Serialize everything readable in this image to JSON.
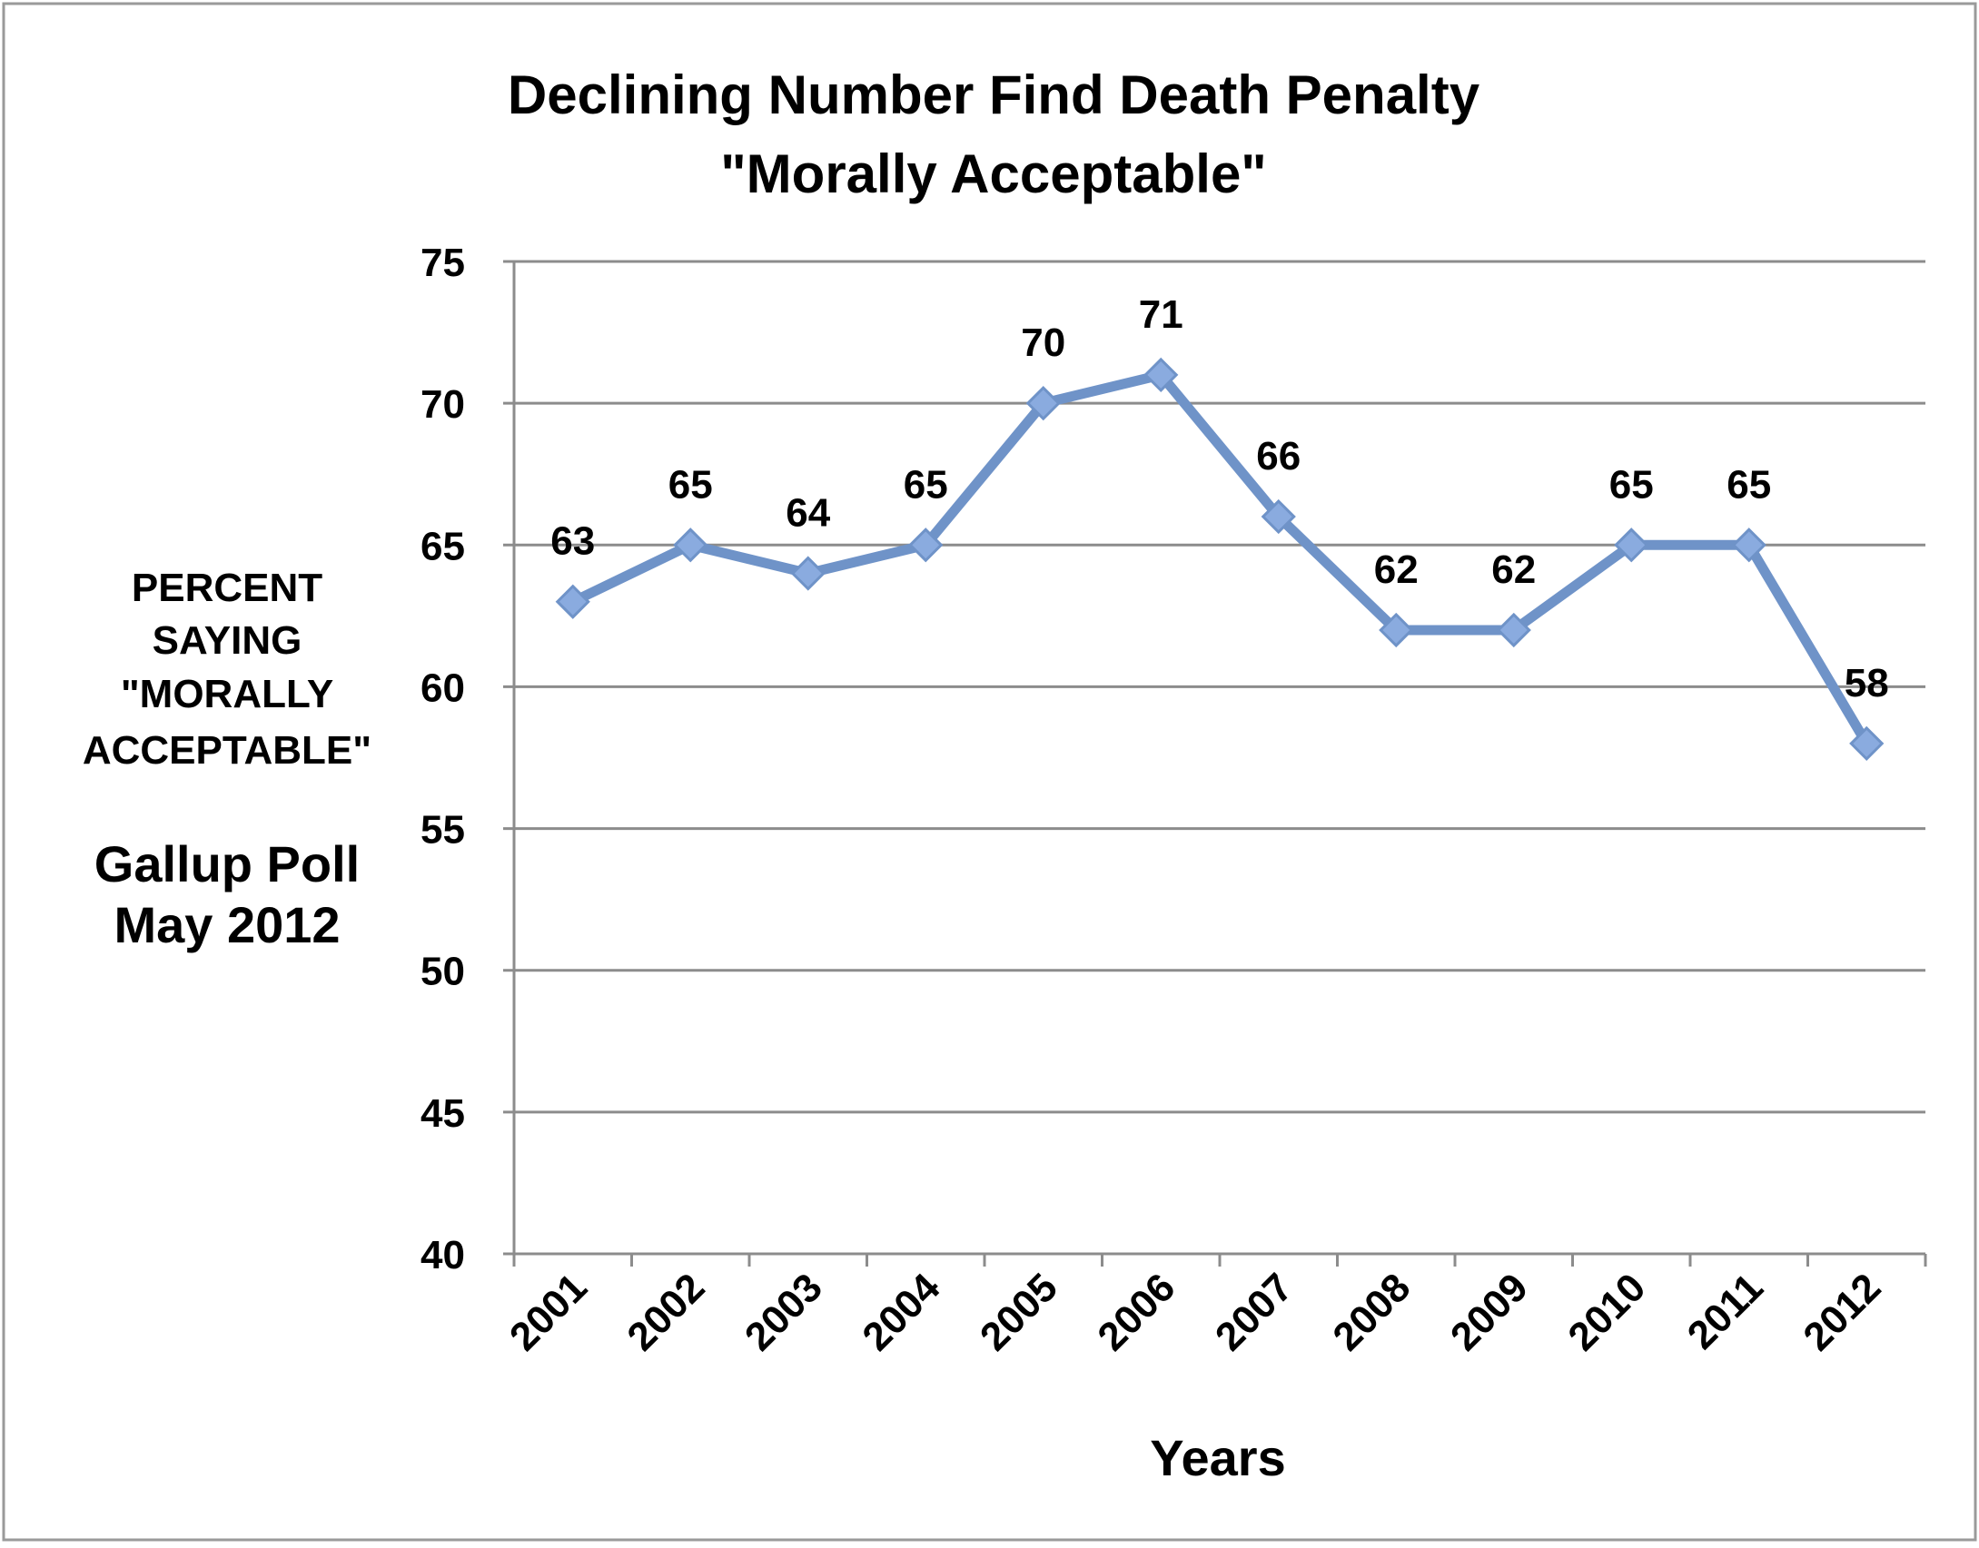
{
  "chart_data": {
    "type": "line",
    "title": [
      "Declining Number Find Death Penalty",
      "\"Morally Acceptable\""
    ],
    "ylabel": [
      "PERCENT",
      "SAYING",
      "\"MORALLY",
      "ACCEPTABLE\""
    ],
    "source": [
      "Gallup Poll",
      "May 2012"
    ],
    "xlabel": "Years",
    "categories": [
      "2001",
      "2002",
      "2003",
      "2004",
      "2005",
      "2006",
      "2007",
      "2008",
      "2009",
      "2010",
      "2011",
      "2012"
    ],
    "values": [
      63,
      65,
      64,
      65,
      70,
      71,
      66,
      62,
      62,
      65,
      65,
      58
    ],
    "ylim": [
      40,
      75
    ],
    "yticks": [
      40,
      45,
      50,
      55,
      60,
      65,
      70,
      75
    ],
    "grid": true,
    "data_labels": true,
    "line_color": "#6f93c8",
    "marker_color": "#8aabdf",
    "grid_color": "#8c8c8c"
  }
}
